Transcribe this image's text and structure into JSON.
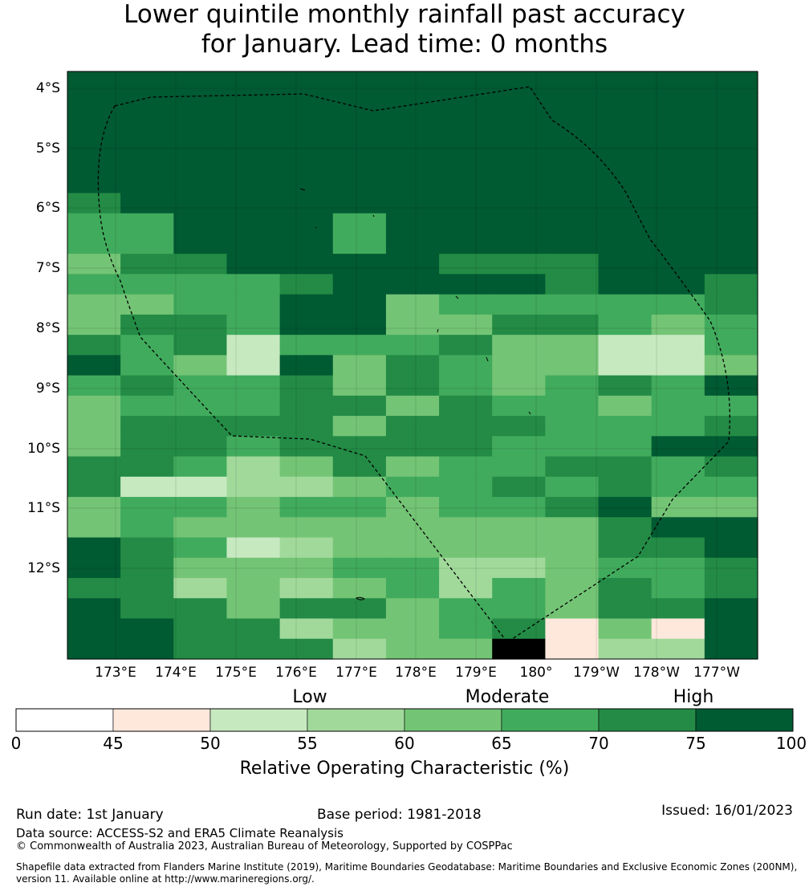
{
  "title": {
    "line1": "Lower quintile monthly rainfall past accuracy",
    "line2": "for January. Lead time: 0 months"
  },
  "map": {
    "lat_labels": [
      "4°S",
      "5°S",
      "6°S",
      "7°S",
      "8°S",
      "9°S",
      "10°S",
      "11°S",
      "12°S"
    ],
    "lon_labels": [
      "173°E",
      "174°E",
      "175°E",
      "176°E",
      "177°E",
      "178°E",
      "179°E",
      "180°",
      "179°W",
      "178°W",
      "177°W"
    ],
    "palette": [
      "#ffffff",
      "#fee8dc",
      "#c7e9c0",
      "#a1d99b",
      "#74c476",
      "#41ab5d",
      "#238b45",
      "#005a32"
    ],
    "grid_rows": [
      "7777777777777",
      "7777777777777",
      "7777777777777",
      "7777777777777",
      "7777777777777",
      "7777777777777",
      "6777777777777",
      "5577757777777",
      "5577757777777",
      "4667777666777",
      "5555677776776",
      "4455774555556",
      "4665774466545",
      "6562555644225",
      "7542746544224",
      "5655646545657",
      "4555664655455",
      "4666646665556",
      "4665666655577",
      "6653464556656",
      "6223345565655",
      "4554554556744",
      "4544444444677",
      "7652344444667",
      "7644455334556",
      "6634345354656",
      "7664664554667",
      "7766344561417",
      "7766634481337"
    ]
  },
  "colorbar": {
    "categories": {
      "low": "Low",
      "moderate": "Moderate",
      "high": "High"
    },
    "ticks": [
      "0",
      "45",
      "50",
      "55",
      "60",
      "65",
      "70",
      "75",
      "100"
    ],
    "label": "Relative Operating Characteristic (%)"
  },
  "footer": {
    "run_date": "Run date: 1st January",
    "base_period": "Base period: 1981-2018",
    "issued": "Issued: 16/01/2023",
    "data_source": "Data source: ACCESS-S2 and ERA5 Climate Reanalysis",
    "copyright": "© Commonwealth of Australia 2023, Australian Bureau of Meteorology, Supported by COSPPac",
    "shapefile_line1": "Shapefile data extracted from Flanders Marine Institute (2019), Maritime Boundaries Geodatabase: Maritime Boundaries and Exclusive Economic Zones (200NM),",
    "shapefile_line2": "version 11. Available online at http://www.marineregions.org/."
  }
}
